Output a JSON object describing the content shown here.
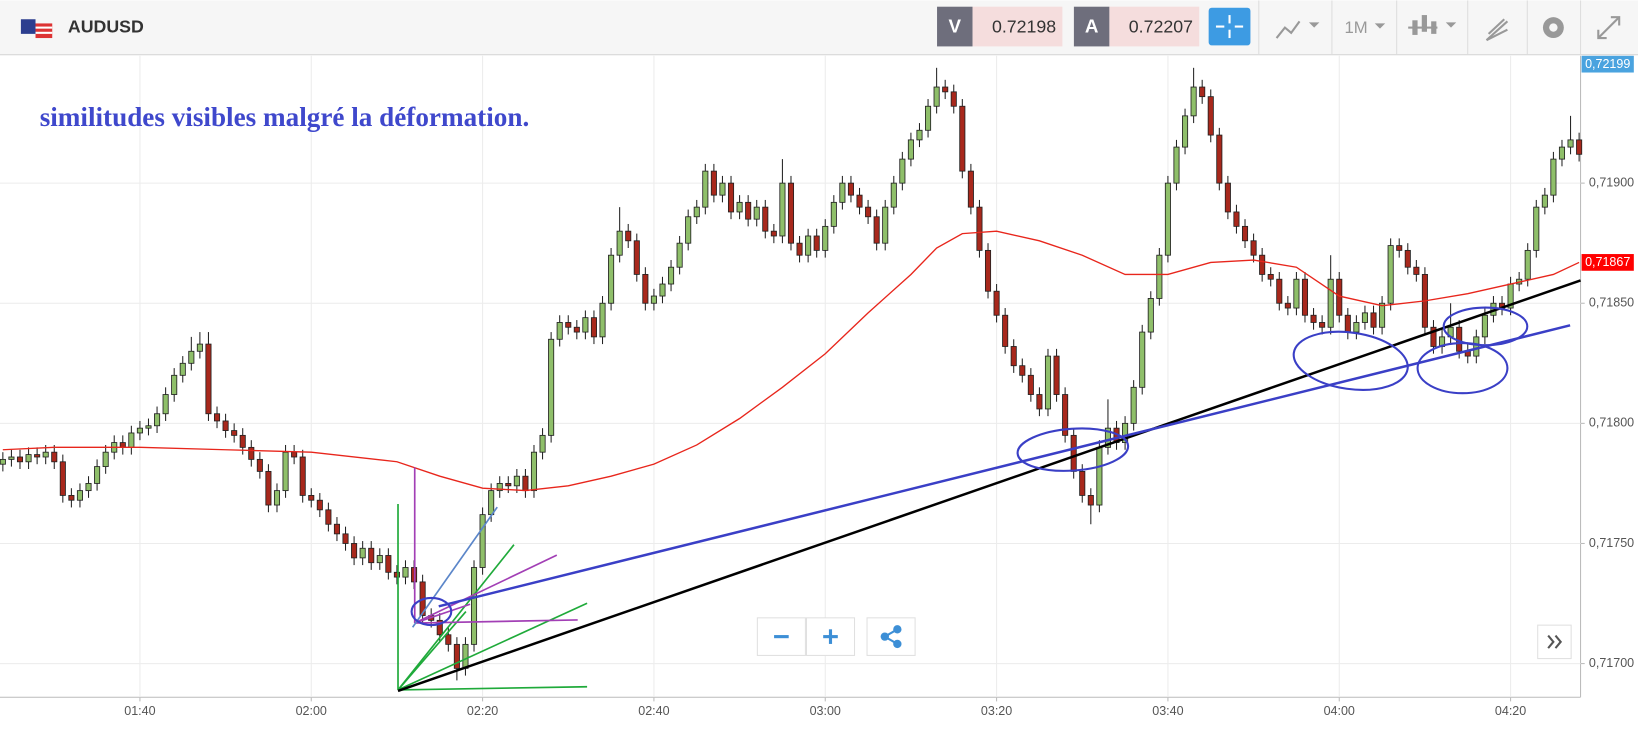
{
  "header": {
    "symbol": "AUDUSD",
    "sell_label": "V",
    "sell_price": "0.72198",
    "buy_label": "A",
    "buy_price": "0.72207",
    "timeframe": "1M"
  },
  "chart_data": {
    "type": "candlestick",
    "annotation": "similitudes visibles malgré la déformation.",
    "up_color": "#8fbf6a",
    "down_color": "#a8281c",
    "grid": true,
    "xlim": [
      "01:23:40",
      "04:28:10"
    ],
    "xticks": [
      "01:40",
      "02:00",
      "02:20",
      "02:40",
      "03:00",
      "03:20",
      "03:40",
      "04:00",
      "04:20"
    ],
    "ylim": [
      0.71686,
      0.71953
    ],
    "yticks": [
      {
        "value": 0.717,
        "label": "0,71700"
      },
      {
        "value": 0.7175,
        "label": "0,71750"
      },
      {
        "value": 0.718,
        "label": "0,71800"
      },
      {
        "value": 0.7185,
        "label": "0,71850"
      },
      {
        "value": 0.719,
        "label": "0,71900"
      }
    ],
    "last_price_label": "0,72199",
    "ma_label": {
      "value": 0.71867,
      "label": "0,71867"
    },
    "x": [
      "01:24",
      "01:25",
      "01:26",
      "01:27",
      "01:28",
      "01:29",
      "01:30",
      "01:31",
      "01:32",
      "01:33",
      "01:34",
      "01:35",
      "01:36",
      "01:37",
      "01:38",
      "01:39",
      "01:40",
      "01:41",
      "01:42",
      "01:43",
      "01:44",
      "01:45",
      "01:46",
      "01:47",
      "01:48",
      "01:49",
      "01:50",
      "01:51",
      "01:52",
      "01:53",
      "01:54",
      "01:55",
      "01:56",
      "01:57",
      "01:58",
      "01:59",
      "02:00",
      "02:01",
      "02:02",
      "02:03",
      "02:04",
      "02:05",
      "02:06",
      "02:07",
      "02:08",
      "02:09",
      "02:10",
      "02:11",
      "02:12",
      "02:13",
      "02:14",
      "02:15",
      "02:16",
      "02:17",
      "02:18",
      "02:19",
      "02:20",
      "02:21",
      "02:22",
      "02:23",
      "02:24",
      "02:25",
      "02:26",
      "02:27",
      "02:28",
      "02:29",
      "02:30",
      "02:31",
      "02:32",
      "02:33",
      "02:34",
      "02:35",
      "02:36",
      "02:37",
      "02:38",
      "02:39",
      "02:40",
      "02:41",
      "02:42",
      "02:43",
      "02:44",
      "02:45",
      "02:46",
      "02:47",
      "02:48",
      "02:49",
      "02:50",
      "02:51",
      "02:52",
      "02:53",
      "02:54",
      "02:55",
      "02:56",
      "02:57",
      "02:58",
      "02:59",
      "03:00",
      "03:01",
      "03:02",
      "03:03",
      "03:04",
      "03:05",
      "03:06",
      "03:07",
      "03:08",
      "03:09",
      "03:10",
      "03:11",
      "03:12",
      "03:13",
      "03:14",
      "03:15",
      "03:16",
      "03:17",
      "03:18",
      "03:19",
      "03:20",
      "03:21",
      "03:22",
      "03:23",
      "03:24",
      "03:25",
      "03:26",
      "03:27",
      "03:28",
      "03:29",
      "03:30",
      "03:31",
      "03:32",
      "03:33",
      "03:34",
      "03:35",
      "03:36",
      "03:37",
      "03:38",
      "03:39",
      "03:40",
      "03:41",
      "03:42",
      "03:43",
      "03:44",
      "03:45",
      "03:46",
      "03:47",
      "03:48",
      "03:49",
      "03:50",
      "03:51",
      "03:52",
      "03:53",
      "03:54",
      "03:55",
      "03:56",
      "03:57",
      "03:58",
      "03:59",
      "04:00",
      "04:01",
      "04:02",
      "04:03",
      "04:04",
      "04:05",
      "04:06",
      "04:07",
      "04:08",
      "04:09",
      "04:10",
      "04:11",
      "04:12",
      "04:13",
      "04:14",
      "04:15",
      "04:16",
      "04:17",
      "04:18",
      "04:19",
      "04:20",
      "04:21",
      "04:22",
      "04:23",
      "04:24",
      "04:25",
      "04:26",
      "04:27",
      "04:28"
    ],
    "open": [
      0.71783,
      0.71785,
      0.71786,
      0.71784,
      0.71787,
      0.71786,
      0.71788,
      0.71784,
      0.7177,
      0.71768,
      0.71772,
      0.71775,
      0.71782,
      0.71788,
      0.71792,
      0.7179,
      0.71796,
      0.71798,
      0.71799,
      0.71804,
      0.71812,
      0.7182,
      0.71825,
      0.7183,
      0.71833,
      0.71804,
      0.71801,
      0.71797,
      0.71795,
      0.7179,
      0.71785,
      0.7178,
      0.71766,
      0.71772,
      0.71788,
      0.71786,
      0.7177,
      0.71768,
      0.71764,
      0.71758,
      0.71754,
      0.7175,
      0.71744,
      0.71748,
      0.71742,
      0.71745,
      0.71738,
      0.71736,
      0.7174,
      0.71734,
      0.7172,
      0.71718,
      0.71712,
      0.71708,
      0.71698,
      0.71708,
      0.7174,
      0.71762,
      0.71772,
      0.71775,
      0.71774,
      0.71778,
      0.71772,
      0.71788,
      0.71795,
      0.71835,
      0.71842,
      0.7184,
      0.71838,
      0.71844,
      0.71836,
      0.7185,
      0.7187,
      0.7188,
      0.71876,
      0.71862,
      0.7185,
      0.71853,
      0.71858,
      0.71865,
      0.71875,
      0.71886,
      0.7189,
      0.71905,
      0.71895,
      0.719,
      0.71888,
      0.71892,
      0.71885,
      0.7189,
      0.7188,
      0.71878,
      0.719,
      0.71875,
      0.7187,
      0.71878,
      0.71872,
      0.71882,
      0.71892,
      0.719,
      0.71895,
      0.7189,
      0.71886,
      0.71875,
      0.7189,
      0.719,
      0.7191,
      0.71918,
      0.71922,
      0.71932,
      0.7194,
      0.71938,
      0.71932,
      0.71905,
      0.7189,
      0.71872,
      0.71855,
      0.71845,
      0.71832,
      0.71824,
      0.7182,
      0.71812,
      0.71806,
      0.71828,
      0.71812,
      0.71795,
      0.7178,
      0.7177,
      0.71766,
      0.7179,
      0.71798,
      0.71792,
      0.718,
      0.71815,
      0.71838,
      0.71852,
      0.7187,
      0.719,
      0.71915,
      0.71928,
      0.7194,
      0.71936,
      0.7192,
      0.719,
      0.71888,
      0.71882,
      0.71876,
      0.7187,
      0.71862,
      0.7186,
      0.7185,
      0.71848,
      0.7186,
      0.71845,
      0.71842,
      0.7184,
      0.7186,
      0.71845,
      0.71838,
      0.71842,
      0.71846,
      0.7184,
      0.7185,
      0.71874,
      0.71872,
      0.71865,
      0.71862,
      0.7184,
      0.71832,
      0.71836,
      0.7184,
      0.7183,
      0.71828,
      0.71836,
      0.71845,
      0.7185,
      0.71848,
      0.71858,
      0.7186,
      0.71872,
      0.7189,
      0.71895,
      0.7191,
      0.71915,
      0.71918
    ],
    "high": [
      0.71788,
      0.71789,
      0.71789,
      0.7179,
      0.7179,
      0.71791,
      0.71791,
      0.71787,
      0.71773,
      0.71775,
      0.71778,
      0.71785,
      0.71791,
      0.71795,
      0.71795,
      0.71799,
      0.71801,
      0.71802,
      0.71807,
      0.71815,
      0.71823,
      0.71828,
      0.71836,
      0.71838,
      0.71838,
      0.71807,
      0.71804,
      0.718,
      0.71798,
      0.71793,
      0.71788,
      0.71783,
      0.71775,
      0.71791,
      0.71791,
      0.71789,
      0.71773,
      0.71771,
      0.71767,
      0.71761,
      0.71757,
      0.71753,
      0.71751,
      0.71751,
      0.71748,
      0.71748,
      0.71741,
      0.71743,
      0.71743,
      0.71737,
      0.71723,
      0.71721,
      0.71715,
      0.71711,
      0.71711,
      0.71743,
      0.71765,
      0.71775,
      0.71778,
      0.71778,
      0.71781,
      0.71781,
      0.71791,
      0.71798,
      0.71838,
      0.71845,
      0.71845,
      0.71843,
      0.71847,
      0.71847,
      0.71853,
      0.71873,
      0.7189,
      0.71883,
      0.71879,
      0.71865,
      0.71856,
      0.71861,
      0.71868,
      0.71878,
      0.71889,
      0.71893,
      0.71908,
      0.71908,
      0.71903,
      0.71903,
      0.71895,
      0.71895,
      0.71893,
      0.71893,
      0.71883,
      0.7191,
      0.71903,
      0.71878,
      0.71881,
      0.71881,
      0.71885,
      0.71895,
      0.71903,
      0.71903,
      0.71898,
      0.71893,
      0.71889,
      0.71893,
      0.71903,
      0.71913,
      0.71921,
      0.71925,
      0.71935,
      0.71948,
      0.71943,
      0.71941,
      0.71935,
      0.71908,
      0.71893,
      0.71875,
      0.71858,
      0.71848,
      0.71835,
      0.71827,
      0.71823,
      0.71815,
      0.71831,
      0.71831,
      0.71815,
      0.71798,
      0.71783,
      0.71773,
      0.71793,
      0.7181,
      0.71801,
      0.71803,
      0.71818,
      0.71841,
      0.71855,
      0.71873,
      0.71903,
      0.71918,
      0.71931,
      0.71948,
      0.71943,
      0.71939,
      0.71923,
      0.71903,
      0.71891,
      0.71885,
      0.71879,
      0.71873,
      0.71865,
      0.71863,
      0.71853,
      0.71863,
      0.71863,
      0.71848,
      0.71845,
      0.7187,
      0.71863,
      0.71848,
      0.71845,
      0.71849,
      0.71849,
      0.71853,
      0.71877,
      0.71877,
      0.71875,
      0.71868,
      0.71865,
      0.71843,
      0.71839,
      0.7185,
      0.71843,
      0.71833,
      0.71839,
      0.71848,
      0.71853,
      0.71853,
      0.71861,
      0.71863,
      0.71875,
      0.71893,
      0.71898,
      0.71913,
      0.71918,
      0.71928,
      0.71921
    ],
    "low": [
      0.7178,
      0.71782,
      0.71781,
      0.71781,
      0.71783,
      0.71783,
      0.71781,
      0.71767,
      0.71765,
      0.71765,
      0.71769,
      0.71772,
      0.71779,
      0.71785,
      0.71787,
      0.71787,
      0.71793,
      0.71795,
      0.71796,
      0.71801,
      0.71809,
      0.71817,
      0.71822,
      0.71827,
      0.71801,
      0.71798,
      0.71794,
      0.71792,
      0.71787,
      0.71782,
      0.71777,
      0.71763,
      0.71763,
      0.71769,
      0.71783,
      0.71767,
      0.71765,
      0.71761,
      0.71755,
      0.71751,
      0.71747,
      0.71741,
      0.71741,
      0.71739,
      0.71739,
      0.71735,
      0.71733,
      0.71733,
      0.71731,
      0.71717,
      0.71715,
      0.71709,
      0.71705,
      0.71693,
      0.71695,
      0.71705,
      0.71737,
      0.71759,
      0.71769,
      0.71771,
      0.71771,
      0.71769,
      0.71769,
      0.71785,
      0.71792,
      0.71832,
      0.71837,
      0.71835,
      0.71835,
      0.71833,
      0.71833,
      0.71847,
      0.71867,
      0.71873,
      0.71859,
      0.71847,
      0.71847,
      0.7185,
      0.71855,
      0.71862,
      0.71872,
      0.71883,
      0.71887,
      0.71892,
      0.71892,
      0.71885,
      0.71885,
      0.71882,
      0.71882,
      0.71877,
      0.71875,
      0.71875,
      0.71872,
      0.71867,
      0.71867,
      0.71869,
      0.71869,
      0.71879,
      0.71889,
      0.71892,
      0.71887,
      0.71883,
      0.71872,
      0.71872,
      0.71887,
      0.71897,
      0.71907,
      0.71915,
      0.71919,
      0.71929,
      0.71935,
      0.71929,
      0.71902,
      0.71887,
      0.71869,
      0.71852,
      0.71842,
      0.71829,
      0.71821,
      0.71817,
      0.71809,
      0.71803,
      0.71803,
      0.71809,
      0.71792,
      0.71777,
      0.71767,
      0.71758,
      0.71763,
      0.71787,
      0.71789,
      0.71789,
      0.71797,
      0.71812,
      0.71835,
      0.71849,
      0.71867,
      0.71897,
      0.71912,
      0.71925,
      0.71933,
      0.71917,
      0.71897,
      0.71885,
      0.71879,
      0.71873,
      0.71867,
      0.71859,
      0.71857,
      0.71847,
      0.71845,
      0.71845,
      0.71842,
      0.71839,
      0.71837,
      0.71837,
      0.71842,
      0.71835,
      0.71835,
      0.71839,
      0.71837,
      0.71837,
      0.71847,
      0.71869,
      0.71862,
      0.71859,
      0.71837,
      0.71829,
      0.71829,
      0.71833,
      0.71827,
      0.71825,
      0.71825,
      0.71833,
      0.71842,
      0.71845,
      0.71845,
      0.71855,
      0.71857,
      0.71869,
      0.71887,
      0.71892,
      0.71907,
      0.71912,
      0.71909
    ],
    "close": [
      0.71785,
      0.71786,
      0.71784,
      0.71787,
      0.71786,
      0.71788,
      0.71784,
      0.7177,
      0.71768,
      0.71772,
      0.71775,
      0.71782,
      0.71788,
      0.71792,
      0.7179,
      0.71796,
      0.71798,
      0.71799,
      0.71804,
      0.71812,
      0.7182,
      0.71825,
      0.7183,
      0.71833,
      0.71804,
      0.71801,
      0.71797,
      0.71795,
      0.7179,
      0.71785,
      0.7178,
      0.71766,
      0.71772,
      0.71788,
      0.71786,
      0.7177,
      0.71768,
      0.71764,
      0.71758,
      0.71754,
      0.7175,
      0.71744,
      0.71748,
      0.71742,
      0.71745,
      0.71738,
      0.71736,
      0.7174,
      0.71734,
      0.7172,
      0.71718,
      0.71712,
      0.71708,
      0.71698,
      0.71708,
      0.7174,
      0.71762,
      0.71772,
      0.71775,
      0.71774,
      0.71778,
      0.71772,
      0.71788,
      0.71795,
      0.71835,
      0.71842,
      0.7184,
      0.71838,
      0.71844,
      0.71836,
      0.7185,
      0.7187,
      0.7188,
      0.71876,
      0.71862,
      0.7185,
      0.71853,
      0.71858,
      0.71865,
      0.71875,
      0.71886,
      0.7189,
      0.71905,
      0.71895,
      0.719,
      0.71888,
      0.71892,
      0.71885,
      0.7189,
      0.7188,
      0.71878,
      0.719,
      0.71875,
      0.7187,
      0.71878,
      0.71872,
      0.71882,
      0.71892,
      0.719,
      0.71895,
      0.7189,
      0.71886,
      0.71875,
      0.7189,
      0.719,
      0.7191,
      0.71918,
      0.71922,
      0.71932,
      0.7194,
      0.71938,
      0.71932,
      0.71905,
      0.7189,
      0.71872,
      0.71855,
      0.71845,
      0.71832,
      0.71824,
      0.7182,
      0.71812,
      0.71806,
      0.71828,
      0.71812,
      0.71795,
      0.7178,
      0.7177,
      0.71766,
      0.7179,
      0.71798,
      0.71792,
      0.718,
      0.71815,
      0.71838,
      0.71852,
      0.7187,
      0.719,
      0.71915,
      0.71928,
      0.7194,
      0.71936,
      0.7192,
      0.719,
      0.71888,
      0.71882,
      0.71876,
      0.7187,
      0.71862,
      0.7186,
      0.7185,
      0.71848,
      0.7186,
      0.71845,
      0.71842,
      0.7184,
      0.7186,
      0.71845,
      0.71838,
      0.71842,
      0.71846,
      0.7184,
      0.7185,
      0.71874,
      0.71872,
      0.71865,
      0.71862,
      0.7184,
      0.71832,
      0.71836,
      0.7184,
      0.7183,
      0.71828,
      0.71836,
      0.71845,
      0.7185,
      0.71848,
      0.71858,
      0.7186,
      0.71872,
      0.7189,
      0.71895,
      0.7191,
      0.71915,
      0.71918,
      0.71912
    ],
    "moving_average": {
      "color": "#e8261c",
      "x": [
        "01:24",
        "01:30",
        "01:40",
        "01:50",
        "02:00",
        "02:10",
        "02:15",
        "02:20",
        "02:25",
        "02:30",
        "02:35",
        "02:40",
        "02:45",
        "02:50",
        "02:55",
        "03:00",
        "03:05",
        "03:10",
        "03:13",
        "03:16",
        "03:20",
        "03:25",
        "03:30",
        "03:35",
        "03:40",
        "03:45",
        "03:50",
        "03:55",
        "04:00",
        "04:05",
        "04:10",
        "04:15",
        "04:20",
        "04:25",
        "04:28"
      ],
      "values": [
        0.71789,
        0.7179,
        0.7179,
        0.71789,
        0.71788,
        0.71784,
        0.71778,
        0.71773,
        0.71772,
        0.71774,
        0.71778,
        0.71783,
        0.71791,
        0.71802,
        0.71815,
        0.71829,
        0.71846,
        0.71862,
        0.71873,
        0.71879,
        0.7188,
        0.71876,
        0.7187,
        0.71862,
        0.71862,
        0.71867,
        0.71868,
        0.71865,
        0.71853,
        0.71849,
        0.71851,
        0.71854,
        0.71858,
        0.71862,
        0.71867
      ]
    }
  }
}
